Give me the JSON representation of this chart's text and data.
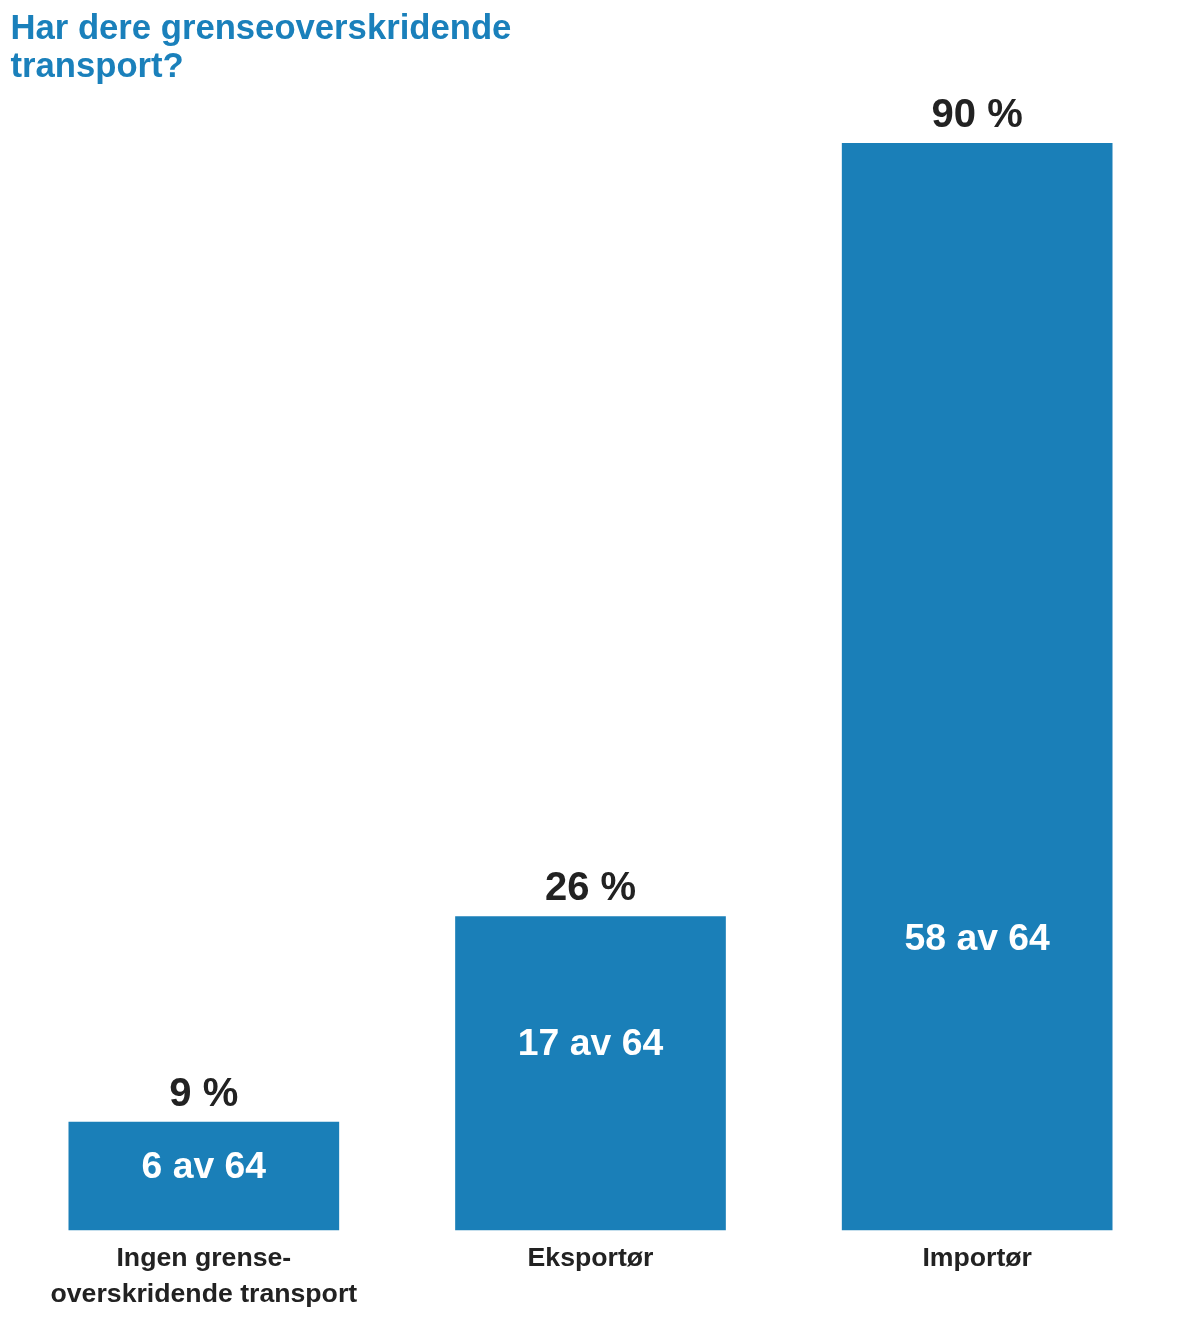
{
  "chart_data": {
    "type": "bar",
    "title": "Har dere grenseoverskridende transport?",
    "categories": [
      "Ingen grense-\noverskridende transport",
      "Eksportør",
      "Importør"
    ],
    "values": [
      9,
      26,
      90
    ],
    "color": "#1a7fb8",
    "value_labels": [
      "9 %",
      "26 %",
      "90 %"
    ],
    "annotations": [
      "6 av 64",
      "17 av 64",
      "58 av 64"
    ],
    "grid": false,
    "tick_labels": "x"
  }
}
